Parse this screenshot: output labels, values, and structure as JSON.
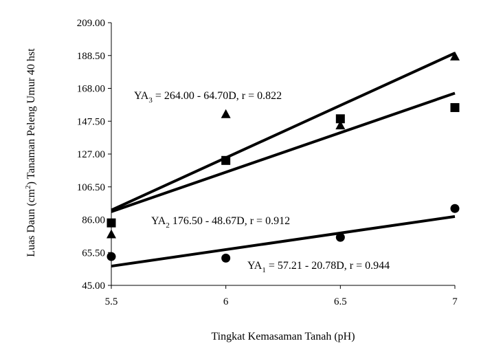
{
  "chart_data": {
    "type": "scatter",
    "title": "",
    "xlabel": "Tingkat Kemasaman Tanah (pH)",
    "ylabel_parts": [
      "Luas Daun (cm",
      "2",
      ") Tanaman Peleng Umur 40 hst"
    ],
    "x_ticks": [
      "5.5",
      "6",
      "6.5",
      "7"
    ],
    "y_ticks": [
      "45.00",
      "65.50",
      "86.00",
      "106.50",
      "127.00",
      "147.50",
      "168.00",
      "188.50",
      "209.00"
    ],
    "xlim": [
      5.5,
      7
    ],
    "ylim": [
      45,
      209
    ],
    "legend": "none",
    "grid": false,
    "series": [
      {
        "marker": "triangle",
        "x": [
          5.5,
          6,
          6.5,
          7
        ],
        "values": [
          77,
          152,
          145,
          188
        ],
        "trend": [
          [
            5.5,
            92
          ],
          [
            7,
            190
          ]
        ],
        "equation_parts": [
          "YA",
          "3",
          " = 264.00 - 64.70D, r = 0.822"
        ]
      },
      {
        "marker": "square",
        "x": [
          5.5,
          6,
          6.5,
          7
        ],
        "values": [
          84,
          123,
          149,
          156
        ],
        "trend": [
          [
            5.5,
            91
          ],
          [
            7,
            165
          ]
        ],
        "equation_parts": [
          "YA",
          "2",
          " 176.50 - 48.67D, r = 0.912"
        ]
      },
      {
        "marker": "circle",
        "x": [
          5.5,
          6,
          6.5,
          7
        ],
        "values": [
          63,
          62,
          75,
          93
        ],
        "trend": [
          [
            5.5,
            57
          ],
          [
            7,
            88
          ]
        ],
        "equation_parts": [
          "YA",
          "1",
          " = 57.21 - 20.78D, r = 0.944"
        ]
      }
    ]
  }
}
